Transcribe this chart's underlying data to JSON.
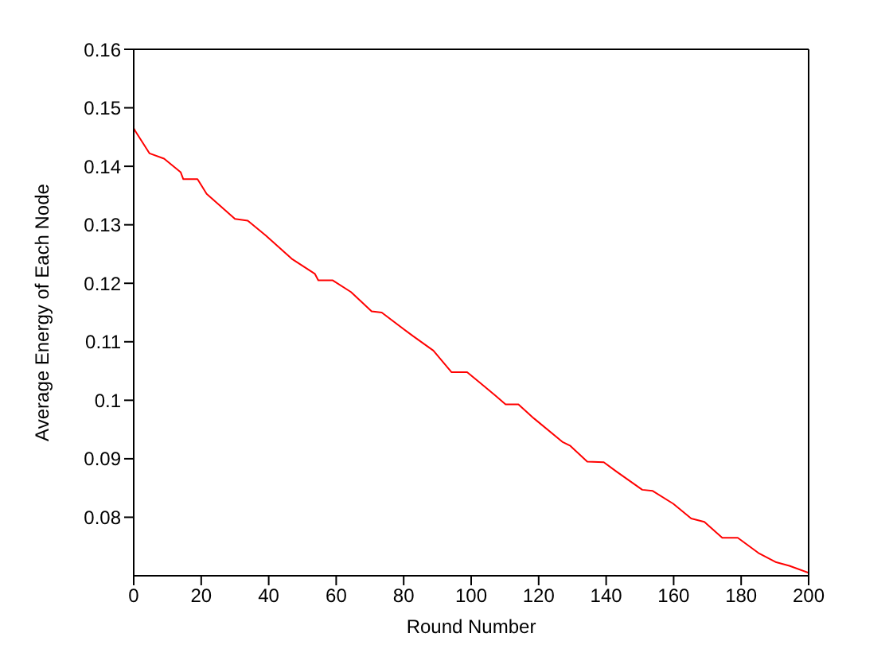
{
  "chart_data": {
    "type": "line",
    "xlabel": "Round Number",
    "ylabel": "Average Energy of Each Node",
    "x": [
      0,
      0.5,
      4.7,
      9.0,
      13.9,
      14.7,
      18.9,
      21.6,
      30,
      33.8,
      39.1,
      46.8,
      53.7,
      54.7,
      59,
      64.4,
      70.5,
      73.5,
      82.7,
      88.8,
      94.2,
      98.8,
      102.6,
      107.2,
      110.2,
      114,
      118.6,
      127,
      129.4,
      134.4,
      139.3,
      143.1,
      150.7,
      153.8,
      159.9,
      165.2,
      169.1,
      174.4,
      179,
      185.1,
      190.4,
      194.3,
      200
    ],
    "series": [
      {
        "color": "#ff0000",
        "values": [
          0.1465,
          0.146,
          0.1422,
          0.1413,
          0.139,
          0.1378,
          0.1378,
          0.1353,
          0.131,
          0.1307,
          0.1282,
          0.1242,
          0.1216,
          0.1205,
          0.1205,
          0.1185,
          0.1152,
          0.115,
          0.111,
          0.1085,
          0.1048,
          0.1048,
          0.103,
          0.1008,
          0.0993,
          0.0993,
          0.0969,
          0.0929,
          0.0922,
          0.0895,
          0.0894,
          0.0878,
          0.0847,
          0.0845,
          0.0823,
          0.0798,
          0.0792,
          0.0765,
          0.0765,
          0.0739,
          0.0723,
          0.0717,
          0.0705
        ]
      }
    ],
    "xlim": [
      0,
      200
    ],
    "xticks": [
      0,
      20,
      40,
      60,
      80,
      100,
      120,
      140,
      160,
      180,
      200
    ],
    "ylim": [
      0.07,
      0.16
    ],
    "yticks": [
      0.08,
      0.09,
      0.1,
      0.11,
      0.12,
      0.13,
      0.14,
      0.15,
      0.16
    ],
    "grid": false,
    "legend": false,
    "marker": "none",
    "line_style": "solid"
  }
}
